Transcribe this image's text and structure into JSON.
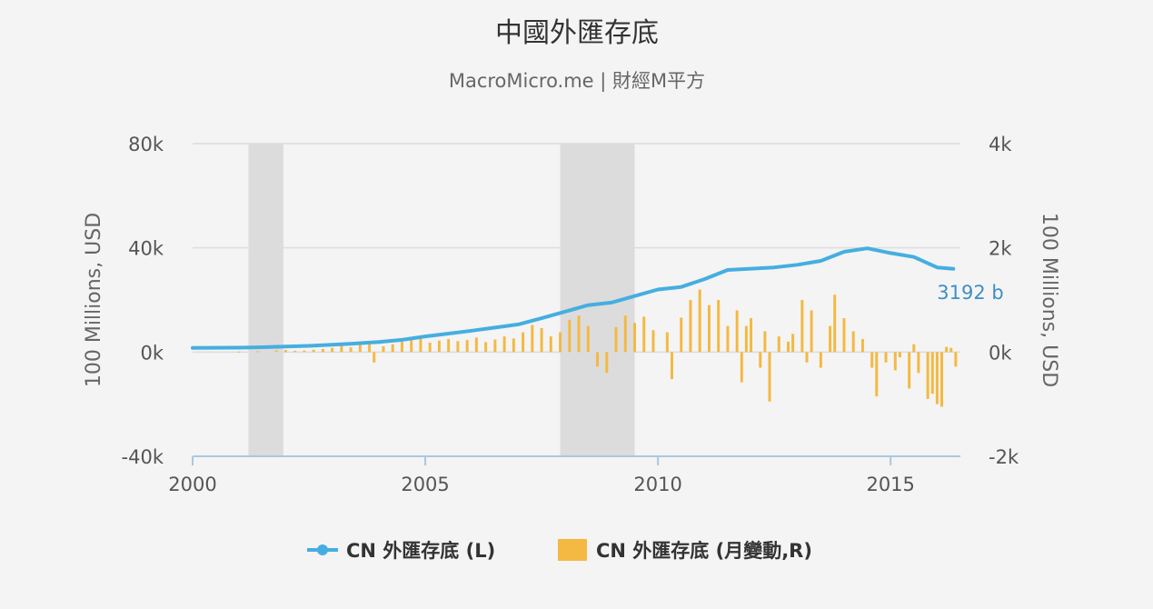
{
  "chart_data": {
    "type": "line+bar",
    "title": "中國外匯存底",
    "subtitle": "MacroMicro.me | 財經M平方",
    "left_axis": {
      "label": "100 Millions, USD",
      "ylim": [
        -40000,
        80000
      ],
      "ticks": [
        -40000,
        0,
        40000,
        80000
      ],
      "tick_labels": [
        "-40k",
        "0k",
        "40k",
        "80k"
      ]
    },
    "right_axis": {
      "label": "100 Millions, USD",
      "ylim": [
        -2000,
        4000
      ],
      "ticks": [
        -2000,
        0,
        2000,
        4000
      ],
      "tick_labels": [
        "-2k",
        "0k",
        "2k",
        "4k"
      ]
    },
    "x_axis": {
      "xlim": [
        2000.0,
        2016.5
      ],
      "ticks": [
        2000,
        2005,
        2010,
        2015
      ],
      "tick_labels": [
        "2000",
        "2005",
        "2010",
        "2015"
      ]
    },
    "grid": true,
    "recession_bands": [
      [
        2001.2,
        2001.95
      ],
      [
        2007.9,
        2009.5
      ]
    ],
    "last_value_label": "3192 b",
    "legend_position": "bottom",
    "series": [
      {
        "name": "CN 外匯存底 (L)",
        "type": "line",
        "axis": "left",
        "color": "#45aee0",
        "points": [
          [
            2000.0,
            1600
          ],
          [
            2000.5,
            1650
          ],
          [
            2001.0,
            1700
          ],
          [
            2001.5,
            1850
          ],
          [
            2002.0,
            2100
          ],
          [
            2002.5,
            2400
          ],
          [
            2003.0,
            2800
          ],
          [
            2003.5,
            3300
          ],
          [
            2004.0,
            3900
          ],
          [
            2004.5,
            4700
          ],
          [
            2005.0,
            6000
          ],
          [
            2005.5,
            7100
          ],
          [
            2006.0,
            8200
          ],
          [
            2006.5,
            9400
          ],
          [
            2007.0,
            10600
          ],
          [
            2007.5,
            13000
          ],
          [
            2008.0,
            15500
          ],
          [
            2008.5,
            18000
          ],
          [
            2009.0,
            19000
          ],
          [
            2009.5,
            21500
          ],
          [
            2010.0,
            24000
          ],
          [
            2010.5,
            25000
          ],
          [
            2011.0,
            28000
          ],
          [
            2011.5,
            31500
          ],
          [
            2012.0,
            32000
          ],
          [
            2012.5,
            32500
          ],
          [
            2013.0,
            33500
          ],
          [
            2013.5,
            35000
          ],
          [
            2014.0,
            38500
          ],
          [
            2014.5,
            39800
          ],
          [
            2015.0,
            38000
          ],
          [
            2015.5,
            36500
          ],
          [
            2016.0,
            32500
          ],
          [
            2016.35,
            31920
          ]
        ]
      },
      {
        "name": "CN 外匯存底 (月變動,R)",
        "type": "bar",
        "axis": "right",
        "color": "#f4b942",
        "points": [
          [
            2001.0,
            10
          ],
          [
            2001.4,
            15
          ],
          [
            2001.8,
            30
          ],
          [
            2002.0,
            40
          ],
          [
            2002.2,
            25
          ],
          [
            2002.4,
            30
          ],
          [
            2002.6,
            45
          ],
          [
            2002.8,
            60
          ],
          [
            2003.0,
            80
          ],
          [
            2003.2,
            120
          ],
          [
            2003.4,
            90
          ],
          [
            2003.6,
            140
          ],
          [
            2003.8,
            160
          ],
          [
            2003.9,
            -200
          ],
          [
            2004.1,
            110
          ],
          [
            2004.3,
            150
          ],
          [
            2004.5,
            200
          ],
          [
            2004.7,
            260
          ],
          [
            2004.9,
            320
          ],
          [
            2005.1,
            180
          ],
          [
            2005.3,
            220
          ],
          [
            2005.5,
            250
          ],
          [
            2005.7,
            210
          ],
          [
            2005.9,
            230
          ],
          [
            2006.1,
            280
          ],
          [
            2006.3,
            190
          ],
          [
            2006.5,
            240
          ],
          [
            2006.7,
            300
          ],
          [
            2006.9,
            260
          ],
          [
            2007.1,
            380
          ],
          [
            2007.3,
            520
          ],
          [
            2007.5,
            460
          ],
          [
            2007.7,
            300
          ],
          [
            2007.9,
            380
          ],
          [
            2008.1,
            620
          ],
          [
            2008.3,
            700
          ],
          [
            2008.5,
            500
          ],
          [
            2008.7,
            -280
          ],
          [
            2008.9,
            -400
          ],
          [
            2009.1,
            480
          ],
          [
            2009.3,
            700
          ],
          [
            2009.5,
            560
          ],
          [
            2009.7,
            680
          ],
          [
            2009.9,
            420
          ],
          [
            2010.2,
            380
          ],
          [
            2010.3,
            -520
          ],
          [
            2010.5,
            660
          ],
          [
            2010.7,
            1000
          ],
          [
            2010.9,
            1200
          ],
          [
            2011.1,
            900
          ],
          [
            2011.3,
            1000
          ],
          [
            2011.5,
            500
          ],
          [
            2011.7,
            800
          ],
          [
            2011.8,
            -580
          ],
          [
            2011.9,
            500
          ],
          [
            2012.0,
            650
          ],
          [
            2012.2,
            -300
          ],
          [
            2012.3,
            400
          ],
          [
            2012.4,
            -950
          ],
          [
            2012.6,
            300
          ],
          [
            2012.8,
            200
          ],
          [
            2012.9,
            350
          ],
          [
            2013.1,
            1000
          ],
          [
            2013.2,
            -200
          ],
          [
            2013.3,
            800
          ],
          [
            2013.5,
            -300
          ],
          [
            2013.7,
            500
          ],
          [
            2013.8,
            1100
          ],
          [
            2014.0,
            650
          ],
          [
            2014.2,
            400
          ],
          [
            2014.4,
            250
          ],
          [
            2014.6,
            -300
          ],
          [
            2014.7,
            -850
          ],
          [
            2014.9,
            -200
          ],
          [
            2015.1,
            -350
          ],
          [
            2015.2,
            -100
          ],
          [
            2015.4,
            -700
          ],
          [
            2015.5,
            150
          ],
          [
            2015.6,
            -400
          ],
          [
            2015.8,
            -900
          ],
          [
            2015.9,
            -800
          ],
          [
            2016.0,
            -1000
          ],
          [
            2016.1,
            -1050
          ],
          [
            2016.2,
            100
          ],
          [
            2016.3,
            80
          ],
          [
            2016.4,
            -280
          ]
        ]
      }
    ]
  },
  "legend": {
    "line_label": "CN 外匯存底 (L)",
    "bar_label": "CN 外匯存底 (月變動,R)"
  },
  "colors": {
    "line": "#45aee0",
    "bar": "#f4b942",
    "grid": "#dcdcdc",
    "band": "#dcdcdc",
    "label": "#3e8fc4"
  }
}
